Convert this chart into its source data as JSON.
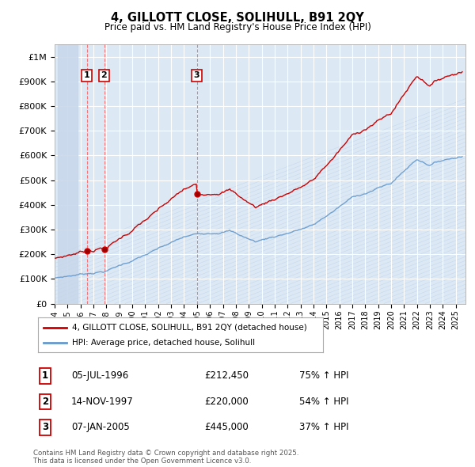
{
  "title": "4, GILLOTT CLOSE, SOLIHULL, B91 2QY",
  "subtitle": "Price paid vs. HM Land Registry's House Price Index (HPI)",
  "background_color": "#ffffff",
  "plot_bg_color": "#dce9f5",
  "grid_color": "#ffffff",
  "ylim": [
    0,
    1050000
  ],
  "ytick_labels": [
    "£0",
    "£100K",
    "£200K",
    "£300K",
    "£400K",
    "£500K",
    "£600K",
    "£700K",
    "£800K",
    "£900K",
    "£1M"
  ],
  "xlim_start": 1994.25,
  "xlim_end": 2025.75,
  "legend_line1": "4, GILLOTT CLOSE, SOLIHULL, B91 2QY (detached house)",
  "legend_line2": "HPI: Average price, detached house, Solihull",
  "legend_color1": "#cc0000",
  "legend_color2": "#6699cc",
  "transaction1_x": 1996.51,
  "transaction1_y": 212450,
  "transaction1_label": "1",
  "transaction1_date": "05-JUL-1996",
  "transaction1_price": "£212,450",
  "transaction1_hpi": "75% ↑ HPI",
  "transaction2_x": 1997.87,
  "transaction2_y": 220000,
  "transaction2_label": "2",
  "transaction2_date": "14-NOV-1997",
  "transaction2_price": "£220,000",
  "transaction2_hpi": "54% ↑ HPI",
  "transaction3_x": 2005.02,
  "transaction3_y": 445000,
  "transaction3_label": "3",
  "transaction3_date": "07-JAN-2005",
  "transaction3_price": "£445,000",
  "transaction3_hpi": "37% ↑ HPI",
  "vline_color": "#ff6666",
  "footer": "Contains HM Land Registry data © Crown copyright and database right 2025.\nThis data is licensed under the Open Government Licence v3.0."
}
